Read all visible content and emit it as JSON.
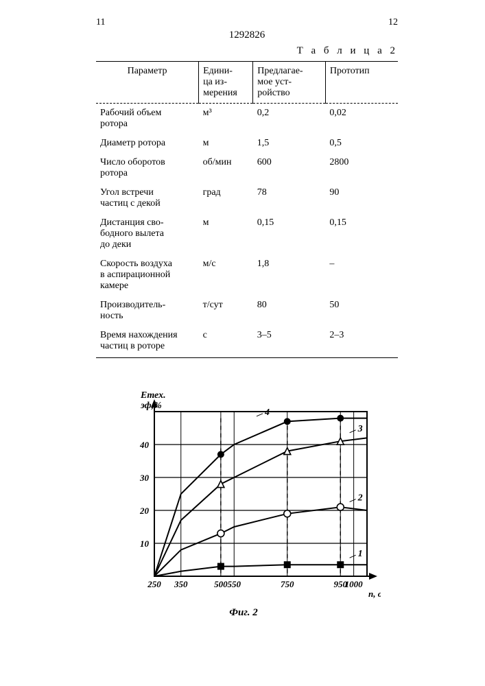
{
  "page_left": "11",
  "page_right": "12",
  "doc_number": "1292826",
  "table_caption": "Т а б л и ц а  2",
  "table": {
    "columns": [
      "Параметр",
      "Едини-\nца из-\nмерения",
      "Предлагае-\nмое уст-\nройство",
      "Прототип"
    ],
    "rows": [
      [
        "Рабочий объем\nротора",
        "м³",
        "0,2",
        "0,02"
      ],
      [
        "Диаметр ротора",
        "м",
        "1,5",
        "0,5"
      ],
      [
        "Число оборотов\nротора",
        "об/мин",
        "600",
        "2800"
      ],
      [
        "Угол встречи\nчастиц с декой",
        "град",
        "78",
        "90"
      ],
      [
        "Дистанция сво-\nбодного вылета\nдо деки",
        "м",
        "0,15",
        "0,15"
      ],
      [
        "Скорость воздуха\nв аспирационной\nкамере",
        "м/с",
        "1,8",
        "–"
      ],
      [
        "Производитель-\nность",
        "т/сут",
        "80",
        "50"
      ],
      [
        "Время нахождения\nчастиц в роторе",
        "с",
        "3–5",
        "2–3"
      ]
    ]
  },
  "chart": {
    "type": "line",
    "y_label_line1": "Eтех.",
    "y_label_line2": "эф,%",
    "x_label": "n, об/мин",
    "fig_caption": "Фиг. 2",
    "x_ticks": [
      250,
      350,
      500,
      550,
      750,
      950,
      1000
    ],
    "y_ticks": [
      10,
      20,
      30,
      40
    ],
    "xlim": [
      250,
      1050
    ],
    "ylim": [
      0,
      50
    ],
    "grid_color": "#000000",
    "background_color": "#ffffff",
    "line_color": "#000000",
    "line_width": 2,
    "dash_line_width": 1.4,
    "series_labels": [
      "1",
      "2",
      "3",
      "4"
    ],
    "series": [
      {
        "label": "4",
        "marker": "dot_filled",
        "pts": [
          [
            250,
            0
          ],
          [
            350,
            25
          ],
          [
            500,
            37
          ],
          [
            550,
            40
          ],
          [
            750,
            47
          ],
          [
            950,
            48
          ],
          [
            1050,
            48
          ]
        ]
      },
      {
        "label": "3",
        "marker": "triangle",
        "pts": [
          [
            250,
            0
          ],
          [
            350,
            17
          ],
          [
            500,
            28
          ],
          [
            550,
            30
          ],
          [
            750,
            38
          ],
          [
            950,
            41
          ],
          [
            1050,
            42
          ]
        ]
      },
      {
        "label": "2",
        "marker": "circle_open",
        "pts": [
          [
            250,
            0
          ],
          [
            350,
            8
          ],
          [
            500,
            13
          ],
          [
            550,
            15
          ],
          [
            750,
            19
          ],
          [
            950,
            21
          ],
          [
            1050,
            20
          ]
        ]
      },
      {
        "label": "1",
        "marker": "square_filled",
        "pts": [
          [
            250,
            0
          ],
          [
            350,
            1.5
          ],
          [
            500,
            3
          ],
          [
            550,
            3
          ],
          [
            750,
            3.5
          ],
          [
            950,
            3.5
          ],
          [
            1050,
            3.5
          ]
        ]
      }
    ],
    "vertical_dashes_x": [
      500,
      750,
      950
    ],
    "marker_size": 5,
    "tick_fontsize": 13,
    "label_fontsize": 13
  }
}
